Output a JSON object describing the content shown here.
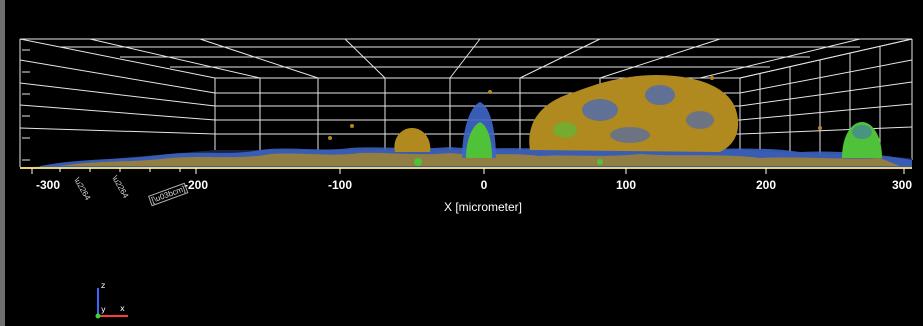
{
  "axis": {
    "title": "X [micrometer]",
    "ticks": [
      "-300",
      "-200",
      "-100",
      "0",
      "100",
      "200",
      "300"
    ],
    "side_labels": [
      "\\u2264",
      "\\u2264",
      "[\\u03bcm]"
    ]
  },
  "gizmo": {
    "z": "z",
    "y": "y",
    "x": "x"
  },
  "colors": {
    "background": "#000000",
    "grid": "#ffffff",
    "surface_gold": "#b08a1e",
    "surface_blue": "#3f66c8",
    "surface_green": "#4fc23a"
  }
}
